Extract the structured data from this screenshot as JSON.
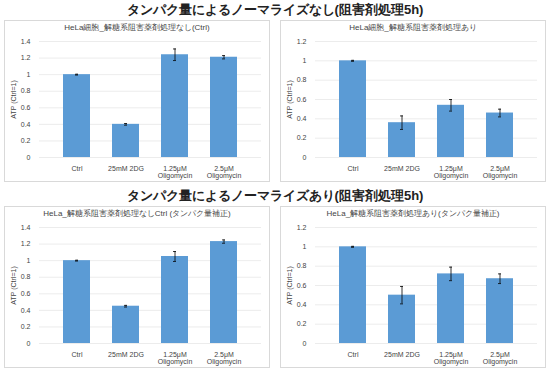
{
  "headings": [
    "タンパク量によるノーマライズなし(阻害剤処理5h)",
    "タンパク量によるノーマライズあり(阻害剤処理5h)"
  ],
  "chart_data": [
    {
      "type": "bar",
      "title": "HeLa細胞_解糖系阻害薬剤処理なし(Ctrl)",
      "y_label": "ATP (Ctrl=1)",
      "categories": [
        "Ctrl",
        "25mM 2DG",
        "1.25μM Oligomycin",
        "2.5μM Oligomycin"
      ],
      "values": [
        1.0,
        0.4,
        1.24,
        1.21
      ],
      "errors": [
        0.005,
        0.01,
        0.07,
        0.02
      ],
      "color": "#5b9bd5",
      "ylim": [
        0,
        1.4
      ],
      "yticks": [
        0,
        0.2,
        0.4,
        0.6,
        0.8,
        1,
        1.2,
        1.4
      ],
      "grid": true
    },
    {
      "type": "bar",
      "title": "HeLa細胞_解糖系阻害薬剤処理あり",
      "y_label": "ATP (Ctrl=1)",
      "categories": [
        "Ctrl",
        "25mM 2DG",
        "1.25μM Oligomycin",
        "2.5μM Oligomycin"
      ],
      "values": [
        1.0,
        0.36,
        0.54,
        0.46
      ],
      "errors": [
        0.005,
        0.07,
        0.06,
        0.04
      ],
      "color": "#5b9bd5",
      "ylim": [
        0,
        1.2
      ],
      "yticks": [
        0,
        0.2,
        0.4,
        0.6,
        0.8,
        1,
        1.2
      ],
      "grid": true
    },
    {
      "type": "bar",
      "title": "HeLa_解糖系阻害薬剤処理なしCtrl (タンパク量補正)",
      "y_label": "ATP (Ctrl=1)",
      "categories": [
        "Ctrl",
        "25mM 2DG",
        "1.25μM Oligomycin",
        "2.5μM Oligomycin"
      ],
      "values": [
        1.0,
        0.45,
        1.05,
        1.23
      ],
      "errors": [
        0.005,
        0.01,
        0.06,
        0.02
      ],
      "color": "#5b9bd5",
      "ylim": [
        0,
        1.4
      ],
      "yticks": [
        0,
        0.2,
        0.4,
        0.6,
        0.8,
        1,
        1.2,
        1.4
      ],
      "grid": true
    },
    {
      "type": "bar",
      "title": "HeLa_解糖系阻害薬剤処理あり(タンパク量補正)",
      "y_label": "ATP (Ctrl=1)",
      "categories": [
        "Ctrl",
        "25mM 2DG",
        "1.25μM Oligomycin",
        "2.5μM Oligomycin"
      ],
      "values": [
        1.0,
        0.5,
        0.72,
        0.67
      ],
      "errors": [
        0.005,
        0.09,
        0.07,
        0.05
      ],
      "color": "#5b9bd5",
      "ylim": [
        0,
        1.2
      ],
      "yticks": [
        0,
        0.2,
        0.4,
        0.6,
        0.8,
        1,
        1.2
      ],
      "grid": true
    }
  ]
}
